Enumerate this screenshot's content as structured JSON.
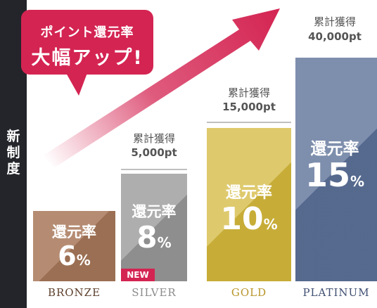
{
  "sidebar": {
    "label": "新制度"
  },
  "callout": {
    "line1": "ポイント還元率",
    "line2": "大幅アップ!"
  },
  "rate_label": "還元率",
  "percent_sign": "%",
  "tiers": [
    {
      "name": "BRONZE",
      "rate": "6",
      "requirement_title": "",
      "requirement_points": "",
      "color": "#a8785a"
    },
    {
      "name": "SILVER",
      "rate": "8",
      "requirement_title": "累計獲得",
      "requirement_points": "5,000pt",
      "badge": "NEW",
      "color": "#9a9a9a"
    },
    {
      "name": "GOLD",
      "rate": "10",
      "requirement_title": "累計獲得",
      "requirement_points": "15,000pt",
      "color": "#d3b83c"
    },
    {
      "name": "PLATINUM",
      "rate": "15",
      "requirement_title": "累計獲得",
      "requirement_points": "40,000pt",
      "color": "#5a6f96"
    }
  ],
  "colors": {
    "accent": "#d42452",
    "sidebar": "#23252a",
    "tier_text": "#5c3f2d",
    "silver_text": "#8b8b8b",
    "gold_text": "#b8962a",
    "platinum_text": "#3f4f72"
  }
}
